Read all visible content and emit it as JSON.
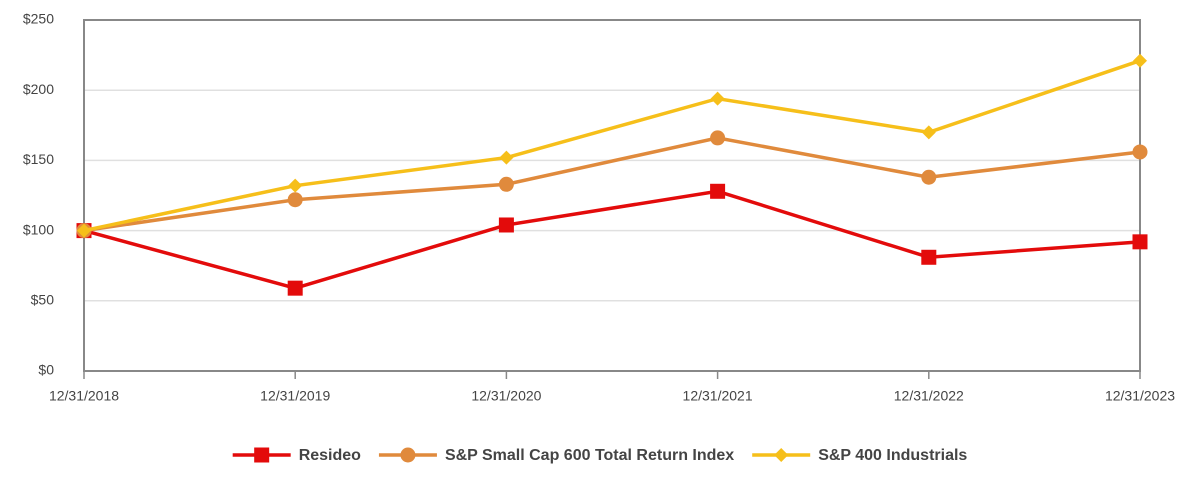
{
  "chart_data": {
    "type": "line",
    "categories": [
      "12/31/2018",
      "12/31/2019",
      "12/31/2020",
      "12/31/2021",
      "12/31/2022",
      "12/31/2023"
    ],
    "series": [
      {
        "name": "Resideo",
        "color": "#e30b0b",
        "marker": "square",
        "values": [
          100,
          59,
          104,
          128,
          81,
          92
        ]
      },
      {
        "name": "S&P Small Cap 600 Total Return Index",
        "color": "#e08a3c",
        "marker": "circle",
        "values": [
          100,
          122,
          133,
          166,
          138,
          156
        ]
      },
      {
        "name": "S&P 400 Industrials",
        "color": "#f6bf1a",
        "marker": "diamond",
        "values": [
          100,
          132,
          152,
          194,
          170,
          221
        ]
      }
    ],
    "ylim": [
      0,
      250
    ],
    "yticks": [
      {
        "value": 0,
        "label": "$0"
      },
      {
        "value": 50,
        "label": "$50"
      },
      {
        "value": 100,
        "label": "$100"
      },
      {
        "value": 150,
        "label": "$150"
      },
      {
        "value": 200,
        "label": "$200"
      },
      {
        "value": 250,
        "label": "$250"
      }
    ],
    "grid": true,
    "legend": "bottom"
  }
}
